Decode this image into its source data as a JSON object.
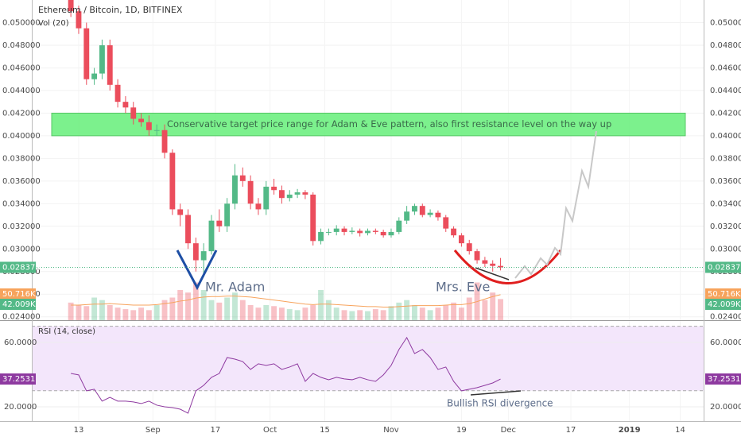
{
  "chart_data": {
    "type": "candlestick",
    "title": "Ethereum / Bitcoin, 1D, BITFINEX",
    "subtitle": "Vol (20)",
    "x": [
      10,
      12,
      14,
      16,
      18,
      20,
      22,
      24,
      26,
      28,
      30,
      32,
      34,
      36,
      38,
      40,
      42,
      44,
      46,
      48,
      50,
      52,
      54,
      56,
      58,
      60,
      62,
      64,
      66,
      68,
      70,
      72,
      74,
      76,
      78,
      80,
      82,
      84,
      86,
      88,
      90,
      92,
      94,
      96,
      98,
      100,
      102,
      104,
      106,
      108,
      110,
      112,
      114,
      116,
      118,
      120
    ],
    "open": [
      0.0525,
      0.051,
      0.0495,
      0.045,
      0.0455,
      0.048,
      0.0445,
      0.043,
      0.0425,
      0.0415,
      0.0412,
      0.0405,
      0.0405,
      0.0385,
      0.0335,
      0.033,
      0.0305,
      0.029,
      0.0298,
      0.0325,
      0.032,
      0.034,
      0.0365,
      0.036,
      0.034,
      0.0335,
      0.0355,
      0.0352,
      0.0345,
      0.0348,
      0.035,
      0.0348,
      0.0307,
      0.0315,
      0.0315,
      0.0318,
      0.0315,
      0.0316,
      0.0314,
      0.0316,
      0.0315,
      0.0312,
      0.0315,
      0.0325,
      0.0333,
      0.0338,
      0.033,
      0.0332,
      0.0328,
      0.0318,
      0.0312,
      0.0305,
      0.0298,
      0.029,
      0.0287,
      0.0285
    ],
    "high": [
      0.053,
      0.0515,
      0.05,
      0.046,
      0.0485,
      0.0485,
      0.045,
      0.0435,
      0.043,
      0.042,
      0.0418,
      0.041,
      0.041,
      0.0388,
      0.034,
      0.0335,
      0.031,
      0.0305,
      0.033,
      0.0335,
      0.0345,
      0.0375,
      0.0372,
      0.0365,
      0.0345,
      0.036,
      0.0362,
      0.0356,
      0.0352,
      0.0353,
      0.0352,
      0.035,
      0.0318,
      0.0318,
      0.0321,
      0.032,
      0.0319,
      0.0318,
      0.0318,
      0.0318,
      0.0317,
      0.0318,
      0.0328,
      0.0338,
      0.034,
      0.034,
      0.0335,
      0.0334,
      0.033,
      0.032,
      0.0314,
      0.0308,
      0.03,
      0.0293,
      0.029,
      0.0292
    ],
    "low": [
      0.0505,
      0.049,
      0.0445,
      0.0445,
      0.045,
      0.044,
      0.0425,
      0.042,
      0.041,
      0.0408,
      0.04,
      0.04,
      0.038,
      0.033,
      0.032,
      0.03,
      0.028,
      0.0275,
      0.0295,
      0.0315,
      0.0315,
      0.0335,
      0.0355,
      0.0335,
      0.033,
      0.033,
      0.0348,
      0.034,
      0.0342,
      0.0345,
      0.0344,
      0.0303,
      0.0304,
      0.0312,
      0.0312,
      0.0312,
      0.0313,
      0.0311,
      0.0312,
      0.0313,
      0.031,
      0.031,
      0.0313,
      0.0322,
      0.033,
      0.0328,
      0.0328,
      0.0325,
      0.0315,
      0.031,
      0.0302,
      0.0295,
      0.0287,
      0.0284,
      0.028,
      0.0281
    ],
    "close": [
      0.051,
      0.0495,
      0.045,
      0.0455,
      0.048,
      0.0445,
      0.043,
      0.0425,
      0.0415,
      0.0412,
      0.0405,
      0.0405,
      0.0385,
      0.0335,
      0.033,
      0.0305,
      0.029,
      0.0298,
      0.0325,
      0.032,
      0.034,
      0.0365,
      0.036,
      0.034,
      0.0335,
      0.0355,
      0.0352,
      0.0345,
      0.0348,
      0.035,
      0.0348,
      0.0307,
      0.0315,
      0.0315,
      0.0318,
      0.0315,
      0.0316,
      0.0314,
      0.0316,
      0.0315,
      0.0312,
      0.0315,
      0.0325,
      0.0333,
      0.0338,
      0.033,
      0.0332,
      0.0328,
      0.0318,
      0.0312,
      0.0305,
      0.0298,
      0.029,
      0.0287,
      0.0285,
      0.028373
    ],
    "up_color": "#53b987",
    "down_color": "#eb4d5c",
    "volume": [
      35,
      30,
      28,
      45,
      40,
      30,
      25,
      22,
      20,
      25,
      20,
      30,
      40,
      45,
      60,
      55,
      75,
      60,
      40,
      35,
      45,
      55,
      40,
      30,
      25,
      30,
      28,
      25,
      22,
      20,
      25,
      30,
      60,
      40,
      25,
      20,
      18,
      20,
      18,
      22,
      20,
      28,
      35,
      40,
      30,
      25,
      20,
      25,
      30,
      35,
      25,
      45,
      75,
      40,
      55,
      42.009
    ],
    "volume_label": "42.009K",
    "volume_ma": [
      30,
      30,
      31,
      32,
      32,
      33,
      32,
      31,
      30,
      30,
      30,
      31,
      33,
      35,
      38,
      40,
      44,
      46,
      47,
      47,
      48,
      48,
      47,
      46,
      44,
      42,
      40,
      38,
      36,
      34,
      32,
      31,
      32,
      32,
      31,
      30,
      29,
      28,
      27,
      27,
      26,
      26,
      27,
      28,
      29,
      29,
      29,
      29,
      30,
      31,
      31,
      33,
      37,
      42,
      47,
      50.716
    ],
    "volume_ma_label": "50.716K",
    "volume_ma_color": "#f7a35c",
    "volume_lim": [
      0,
      150
    ],
    "xlim": [
      0,
      172
    ],
    "xticks": [
      {
        "value": 12,
        "label": "13"
      },
      {
        "value": 31,
        "label": "Sep"
      },
      {
        "value": 47,
        "label": "17"
      },
      {
        "value": 61,
        "label": "Oct"
      },
      {
        "value": 75,
        "label": "15"
      },
      {
        "value": 92,
        "label": "Nov"
      },
      {
        "value": 110,
        "label": "19"
      },
      {
        "value": 122,
        "label": "Dec"
      },
      {
        "value": 138,
        "label": "17"
      },
      {
        "value": 153,
        "label": "2019"
      },
      {
        "value": 166,
        "label": "14"
      }
    ],
    "ylim": [
      0.0237,
      0.052
    ],
    "yticks": [
      {
        "value": 0.024,
        "label": "0.024000"
      },
      {
        "value": 0.026,
        "label": "0.026000"
      },
      {
        "value": 0.028,
        "label": "0.028000"
      },
      {
        "value": 0.03,
        "label": "0.030000"
      },
      {
        "value": 0.032,
        "label": "0.032000"
      },
      {
        "value": 0.034,
        "label": "0.034000"
      },
      {
        "value": 0.036,
        "label": "0.036000"
      },
      {
        "value": 0.038,
        "label": "0.038000"
      },
      {
        "value": 0.04,
        "label": "0.040000"
      },
      {
        "value": 0.042,
        "label": "0.042000"
      },
      {
        "value": 0.044,
        "label": "0.044000"
      },
      {
        "value": 0.046,
        "label": "0.046000"
      },
      {
        "value": 0.048,
        "label": "0.048000"
      },
      {
        "value": 0.05,
        "label": "0.050000"
      }
    ],
    "target_zone": {
      "range": [
        0.04,
        0.042
      ],
      "text": "Conservative target price range for Adam & Eve pattern, also first resistance level on the way up",
      "color": "#66ef7a"
    },
    "annotations": [
      "Mr. Adam",
      "Mrs. Eve",
      "Bullish RSI divergence"
    ],
    "rsi": {
      "title": "RSI (14, close)",
      "color": "#8e3aa0",
      "band": [
        30,
        70
      ],
      "ylim": [
        11.1,
        72.8
      ],
      "yticks": [
        {
          "value": 20,
          "label": "20.0000"
        },
        {
          "value": 60,
          "label": "60.0000"
        }
      ],
      "values": [
        40.7,
        39.8,
        29.9,
        30.9,
        23.5,
        25.9,
        23.5,
        23.5,
        23,
        22,
        23.5,
        21,
        20,
        19.5,
        18.5,
        16,
        29.9,
        33.3,
        38.3,
        40.7,
        50.6,
        49.6,
        48.1,
        43.2,
        46.7,
        45.7,
        46.7,
        43.2,
        44.7,
        46.7,
        35.8,
        40.7,
        38.3,
        36.8,
        38.3,
        37.3,
        36.8,
        38.3,
        36.8,
        35.8,
        39.8,
        45.7,
        55.6,
        63,
        53.1,
        55.6,
        50.6,
        43.2,
        44.7,
        35.8,
        29.9,
        30.9,
        31.9,
        33.3,
        34.8,
        37.2531
      ]
    }
  }
}
